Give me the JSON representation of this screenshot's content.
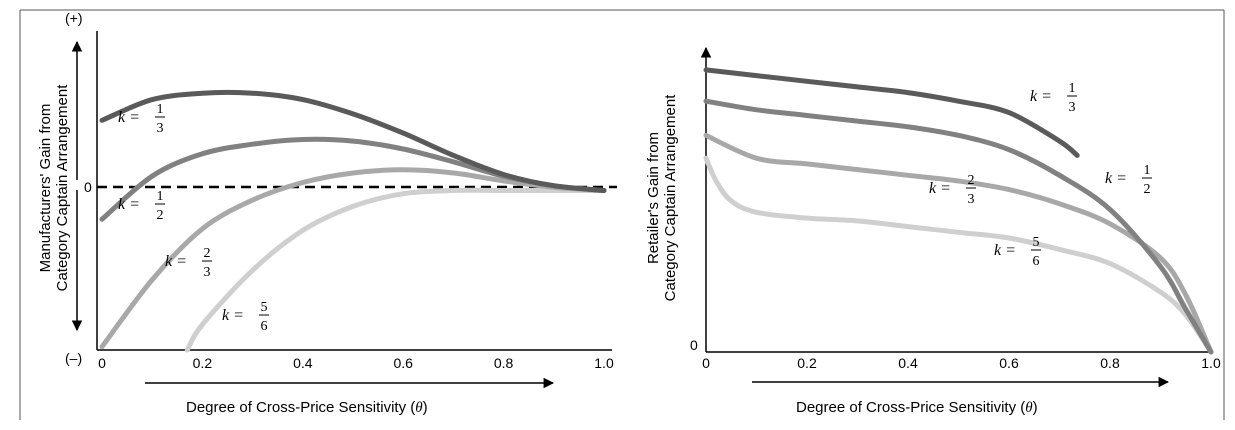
{
  "figure": {
    "colors": {
      "frame": "#555555",
      "k_1_3": "#5a5a5a",
      "k_1_2": "#818181",
      "k_2_3": "#a8a8a8",
      "k_5_6": "#cfcfcf"
    }
  },
  "chart_data": [
    {
      "type": "line",
      "ylabel_line1": "Manufacturers' Gain from",
      "ylabel_line2": "Category Captain  Arrangement",
      "xlabel": "Degree of Cross-Price Sensitivity (",
      "xlabel_symbol": "θ",
      "xlabel_close": ")",
      "y_top_label": "(+)",
      "y_bottom_label": "(–)",
      "y_zero_label": "0",
      "x_ticks": [
        "0",
        "0.2",
        "0.4",
        "0.6",
        "0.8",
        "1.0"
      ],
      "xlim": [
        0,
        1.0
      ],
      "ylim": [
        -1,
        1
      ],
      "zero_line": "dashed",
      "grid": false,
      "legend": "inline labels",
      "series": [
        {
          "label_k": "k =",
          "label_num": "1",
          "label_den": "3",
          "x": [
            0,
            0.1,
            0.2,
            0.3,
            0.4,
            0.5,
            0.6,
            0.7,
            0.8,
            0.9,
            1.0
          ],
          "y": [
            0.44,
            0.57,
            0.61,
            0.61,
            0.57,
            0.48,
            0.36,
            0.22,
            0.1,
            0.03,
            0.0
          ]
        },
        {
          "label_k": "k =",
          "label_num": "1",
          "label_den": "2",
          "x": [
            0,
            0.1,
            0.2,
            0.3,
            0.4,
            0.5,
            0.6,
            0.7,
            0.8,
            0.9,
            1.0
          ],
          "y": [
            -0.18,
            0.09,
            0.23,
            0.29,
            0.32,
            0.31,
            0.26,
            0.18,
            0.09,
            0.03,
            0.0
          ]
        },
        {
          "label_k": "k =",
          "label_num": "2",
          "label_den": "3",
          "x": [
            0,
            0.1,
            0.2,
            0.3,
            0.4,
            0.5,
            0.6,
            0.7,
            0.8,
            0.9,
            1.0
          ],
          "y": [
            -0.98,
            -0.56,
            -0.24,
            -0.06,
            0.05,
            0.11,
            0.13,
            0.11,
            0.06,
            0.02,
            0.0
          ]
        },
        {
          "label_k": "k =",
          "label_num": "5",
          "label_den": "6",
          "x": [
            0.17,
            0.2,
            0.3,
            0.4,
            0.5,
            0.6,
            0.7,
            0.8,
            0.9,
            1.0
          ],
          "y": [
            -1.0,
            -0.84,
            -0.5,
            -0.25,
            -0.1,
            -0.02,
            0.0,
            0.0,
            0.0,
            0.0
          ]
        }
      ]
    },
    {
      "type": "line",
      "ylabel_line1": "Retailer's Gain from",
      "ylabel_line2": "Category Captain  Arrangement",
      "xlabel": "Degree of Cross-Price Sensitivity (",
      "xlabel_symbol": "θ",
      "xlabel_close": ")",
      "y_zero_label": "0",
      "x_ticks": [
        "0",
        "0.2",
        "0.4",
        "0.6",
        "0.8",
        "1.0"
      ],
      "xlim": [
        0,
        1.0
      ],
      "ylim": [
        0,
        1
      ],
      "grid": false,
      "legend": "inline labels",
      "series": [
        {
          "label_k": "k =",
          "label_num": "1",
          "label_den": "3",
          "x": [
            0,
            0.1,
            0.2,
            0.3,
            0.4,
            0.5,
            0.6,
            0.7,
            0.735
          ],
          "y": [
            0.99,
            0.97,
            0.95,
            0.93,
            0.91,
            0.88,
            0.84,
            0.74,
            0.69
          ]
        },
        {
          "label_k": "k =",
          "label_num": "1",
          "label_den": "2",
          "x": [
            0,
            0.1,
            0.2,
            0.3,
            0.4,
            0.5,
            0.6,
            0.7,
            0.8,
            0.9,
            0.95,
            1.0
          ],
          "y": [
            0.88,
            0.85,
            0.83,
            0.81,
            0.79,
            0.76,
            0.71,
            0.62,
            0.5,
            0.3,
            0.15,
            0.0
          ]
        },
        {
          "label_k": "k =",
          "label_num": "2",
          "label_den": "3",
          "x": [
            0,
            0.1,
            0.2,
            0.3,
            0.4,
            0.5,
            0.6,
            0.7,
            0.8,
            0.9,
            0.95,
            1.0
          ],
          "y": [
            0.76,
            0.68,
            0.66,
            0.64,
            0.62,
            0.6,
            0.57,
            0.52,
            0.45,
            0.33,
            0.2,
            0.0
          ]
        },
        {
          "label_k": "k =",
          "label_num": "5",
          "label_den": "6",
          "x": [
            0,
            0.02,
            0.05,
            0.1,
            0.2,
            0.3,
            0.4,
            0.5,
            0.6,
            0.7,
            0.8,
            0.9,
            0.95,
            1.0
          ],
          "y": [
            0.68,
            0.6,
            0.53,
            0.49,
            0.47,
            0.46,
            0.44,
            0.42,
            0.4,
            0.36,
            0.31,
            0.21,
            0.13,
            0.0
          ]
        }
      ]
    }
  ]
}
